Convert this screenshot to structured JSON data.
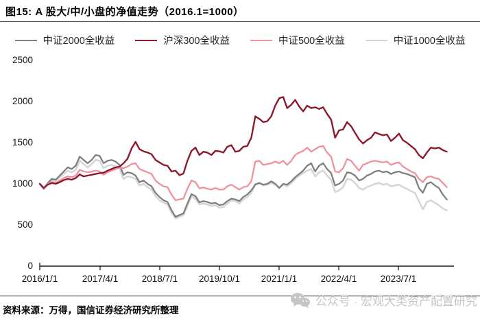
{
  "header": {
    "title": "图15: A 股大/中/小盘的净值走势（2016.1=1000）"
  },
  "footer": {
    "source_text": "资料来源：万得，国信证券经济研究所整理"
  },
  "watermark": {
    "icon": "wechat-icon",
    "text": "公众号 · 宏观大类资产配置研究",
    "color": "#c6c6c6"
  },
  "chart_data": {
    "type": "line",
    "title": "A 股大/中/小盘的净值走势（2016.1=1000）",
    "xlabel": "",
    "ylabel": "",
    "x_frequency": "monthly",
    "x_range": [
      "2016/1",
      "2024/7"
    ],
    "xticks": [
      "2016/1/1",
      "2017/4/1",
      "2018/7/1",
      "2019/10/1",
      "2021/1/1",
      "2022/4/1",
      "2023/7/1"
    ],
    "yticks_top_down": [
      "2500",
      "2000",
      "1500",
      "1000",
      "500",
      "0"
    ],
    "ylim": [
      0,
      2500
    ],
    "grid": false,
    "legend_position": "top",
    "series": [
      {
        "name": "中证2000全收益",
        "color": "#7F7F7F",
        "values": [
          1000,
          940,
          1010,
          1060,
          1050,
          1100,
          1150,
          1200,
          1180,
          1220,
          1330,
          1290,
          1250,
          1290,
          1350,
          1340,
          1250,
          1280,
          1290,
          1270,
          1230,
          1110,
          1140,
          1130,
          1100,
          1020,
          1040,
          1000,
          970,
          890,
          840,
          800,
          780,
          680,
          600,
          620,
          640,
          760,
          875,
          850,
          775,
          790,
          780,
          760,
          770,
          740,
          750,
          790,
          820,
          810,
          790,
          840,
          870,
          920,
          990,
          1010,
          990,
          1000,
          1030,
          1000,
          950,
          1000,
          990,
          1030,
          1080,
          1120,
          1160,
          1220,
          1250,
          1150,
          1220,
          1250,
          1180,
          1130,
          980,
          1000,
          1040,
          1140,
          1130,
          1100,
          1040,
          1060,
          1100,
          1120,
          1150,
          1160,
          1140,
          1150,
          1120,
          1140,
          1150,
          1130,
          1120,
          1100,
          1080,
          950,
          890,
          1000,
          1020,
          980,
          950,
          870,
          810
        ]
      },
      {
        "name": "沪深300全收益",
        "color": "#8B1A2C",
        "values": [
          1000,
          950,
          990,
          1010,
          1000,
          1020,
          1045,
          1060,
          1050,
          1070,
          1115,
          1090,
          1100,
          1110,
          1120,
          1130,
          1135,
          1160,
          1180,
          1200,
          1210,
          1250,
          1305,
          1430,
          1510,
          1420,
          1395,
          1380,
          1360,
          1290,
          1260,
          1230,
          1220,
          1150,
          1160,
          1105,
          1125,
          1280,
          1400,
          1440,
          1350,
          1390,
          1380,
          1350,
          1400,
          1395,
          1380,
          1450,
          1470,
          1390,
          1400,
          1450,
          1460,
          1560,
          1820,
          1790,
          1750,
          1760,
          1820,
          1950,
          2040,
          2055,
          1920,
          1960,
          2020,
          1940,
          1880,
          1950,
          1920,
          1930,
          1910,
          1930,
          1850,
          1780,
          1560,
          1650,
          1660,
          1750,
          1700,
          1620,
          1540,
          1490,
          1530,
          1560,
          1625,
          1605,
          1590,
          1600,
          1520,
          1560,
          1610,
          1530,
          1500,
          1460,
          1420,
          1350,
          1310,
          1380,
          1440,
          1430,
          1440,
          1410,
          1390
        ]
      },
      {
        "name": "中证500全收益",
        "color": "#F0919E",
        "values": [
          1000,
          945,
          1000,
          1020,
          1010,
          1040,
          1070,
          1090,
          1080,
          1100,
          1170,
          1150,
          1140,
          1150,
          1160,
          1150,
          1110,
          1140,
          1160,
          1180,
          1200,
          1190,
          1210,
          1240,
          1250,
          1180,
          1160,
          1140,
          1120,
          1040,
          1000,
          970,
          960,
          870,
          800,
          810,
          820,
          940,
          1040,
          1020,
          945,
          955,
          940,
          930,
          950,
          930,
          930,
          970,
          990,
          960,
          930,
          960,
          970,
          1030,
          1270,
          1280,
          1230,
          1240,
          1250,
          1270,
          1250,
          1280,
          1230,
          1280,
          1350,
          1380,
          1400,
          1440,
          1390,
          1420,
          1450,
          1460,
          1380,
          1330,
          1150,
          1140,
          1190,
          1300,
          1280,
          1220,
          1160,
          1230,
          1250,
          1270,
          1280,
          1270,
          1260,
          1270,
          1230,
          1250,
          1260,
          1210,
          1180,
          1150,
          1130,
          1060,
          1020,
          1080,
          1090,
          1070,
          1060,
          1010,
          960
        ]
      },
      {
        "name": "中证1000全收益",
        "color": "#D6D6D6",
        "values": [
          1000,
          935,
          1000,
          1040,
          1030,
          1080,
          1120,
          1160,
          1140,
          1170,
          1280,
          1240,
          1200,
          1240,
          1290,
          1280,
          1190,
          1220,
          1230,
          1210,
          1180,
          1060,
          1090,
          1080,
          1060,
          980,
          1000,
          960,
          930,
          850,
          800,
          770,
          750,
          650,
          580,
          600,
          620,
          730,
          850,
          820,
          750,
          760,
          750,
          730,
          740,
          710,
          720,
          760,
          800,
          790,
          760,
          810,
          840,
          890,
          1000,
          1010,
          980,
          990,
          1010,
          990,
          950,
          990,
          970,
          1010,
          1060,
          1100,
          1130,
          1160,
          1180,
          1090,
          1140,
          1160,
          1100,
          1050,
          900,
          920,
          960,
          1060,
          1050,
          1010,
          950,
          930,
          960,
          980,
          1000,
          1010,
          990,
          1000,
          970,
          980,
          990,
          960,
          940,
          910,
          890,
          790,
          690,
          780,
          800,
          770,
          740,
          700,
          680
        ]
      }
    ],
    "draw_order": [
      "中证1000全收益",
      "中证2000全收益",
      "中证500全收益",
      "沪深300全收益"
    ]
  }
}
